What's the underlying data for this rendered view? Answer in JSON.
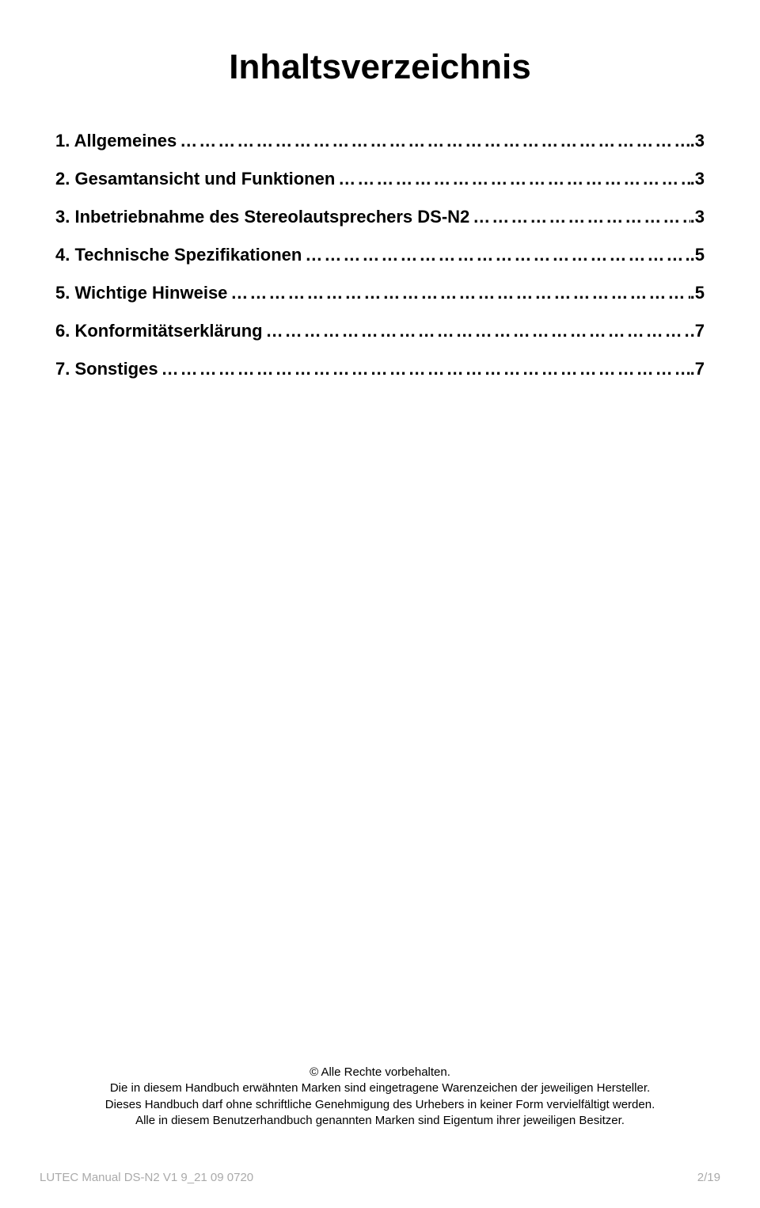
{
  "title": "Inhaltsverzeichnis",
  "toc": {
    "entries": [
      {
        "label": "1. Allgemeines",
        "page": ".3"
      },
      {
        "label": "2. Gesamtansicht und Funktionen",
        "page": ".3"
      },
      {
        "label": "3. Inbetriebnahme des Stereolautsprechers DS-N2",
        "page": ".3"
      },
      {
        "label": "4. Technische Spezifikationen",
        "page": "..5"
      },
      {
        "label": "5. Wichtige Hinweise",
        "page": ".5"
      },
      {
        "label": "6. Konformitätserklärung",
        "page": ".7"
      },
      {
        "label": "7. Sonstiges",
        "page": ".7"
      }
    ]
  },
  "copyright": {
    "line1": "© Alle Rechte vorbehalten.",
    "line2": "Die in diesem Handbuch erwähnten Marken sind eingetragene Warenzeichen der jeweiligen Hersteller.",
    "line3": "Dieses Handbuch darf ohne schriftliche Genehmigung des Urhebers in keiner Form vervielfältigt werden.",
    "line4": "Alle in diesem Benutzerhandbuch genannten Marken sind Eigentum ihrer jeweiligen Besitzer."
  },
  "footer": {
    "left": "LUTEC Manual DS-N2 V1 9_21 09 0720",
    "right": "2/19"
  },
  "styles": {
    "title_fontsize": 44,
    "toc_fontsize": 22,
    "copyright_fontsize": 15,
    "footer_fontsize": 15,
    "text_color": "#000000",
    "footer_color": "#aaaaaa",
    "background_color": "#ffffff"
  }
}
